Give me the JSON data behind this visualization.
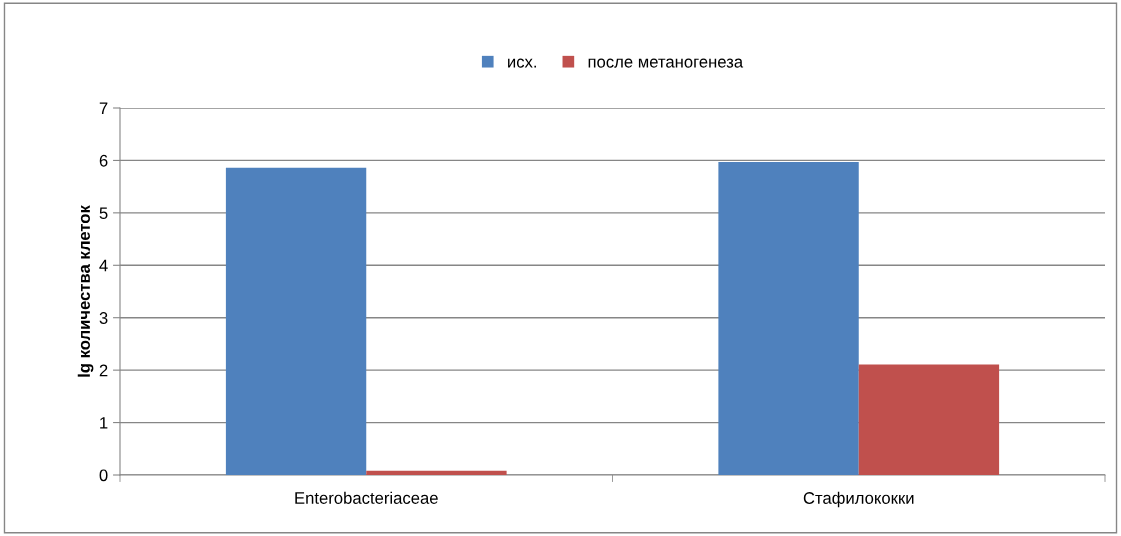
{
  "chart_data": {
    "type": "bar",
    "ylabel": "lg количества клеток",
    "categories": [
      "Enterobacteriaceae",
      "Стафилококки"
    ],
    "series": [
      {
        "name": "исх.",
        "color": "#4f81bd",
        "values": [
          5.86,
          5.97
        ]
      },
      {
        "name": "после метаногенеза",
        "color": "#c0504d",
        "values": [
          0.08,
          2.11
        ]
      }
    ],
    "ylim": [
      0,
      7
    ],
    "yticks": [
      0,
      1,
      2,
      3,
      4,
      5,
      6,
      7
    ],
    "grid": "y",
    "legend": "top"
  }
}
